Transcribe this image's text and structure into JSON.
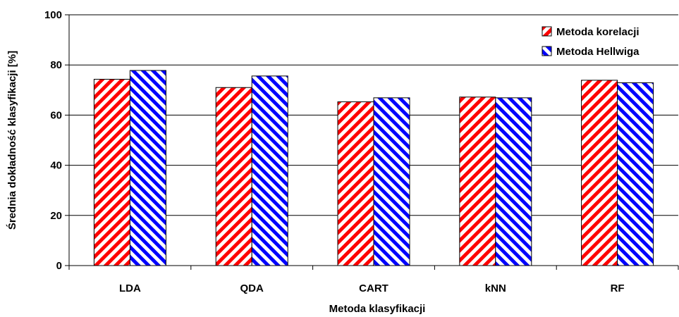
{
  "chart_data": {
    "type": "bar",
    "categories": [
      "LDA",
      "QDA",
      "CART",
      "kNN",
      "RF"
    ],
    "series": [
      {
        "name": "Metoda korelacji",
        "values": [
          74.3,
          71.0,
          65.3,
          67.2,
          73.9
        ],
        "color": "#ff0000",
        "pattern": "hatch-right"
      },
      {
        "name": "Metoda Hellwiga",
        "values": [
          77.8,
          75.6,
          66.9,
          66.9,
          72.9
        ],
        "color": "#0000ff",
        "pattern": "hatch-left"
      }
    ],
    "xlabel": "Metoda klasyfikacji",
    "ylabel": "Średnia dokładność klasyfikacji [%]",
    "ylim": [
      0,
      100
    ],
    "yticks": [
      0,
      20,
      40,
      60,
      80,
      100
    ],
    "grid": true,
    "legend_position": "top-right"
  }
}
